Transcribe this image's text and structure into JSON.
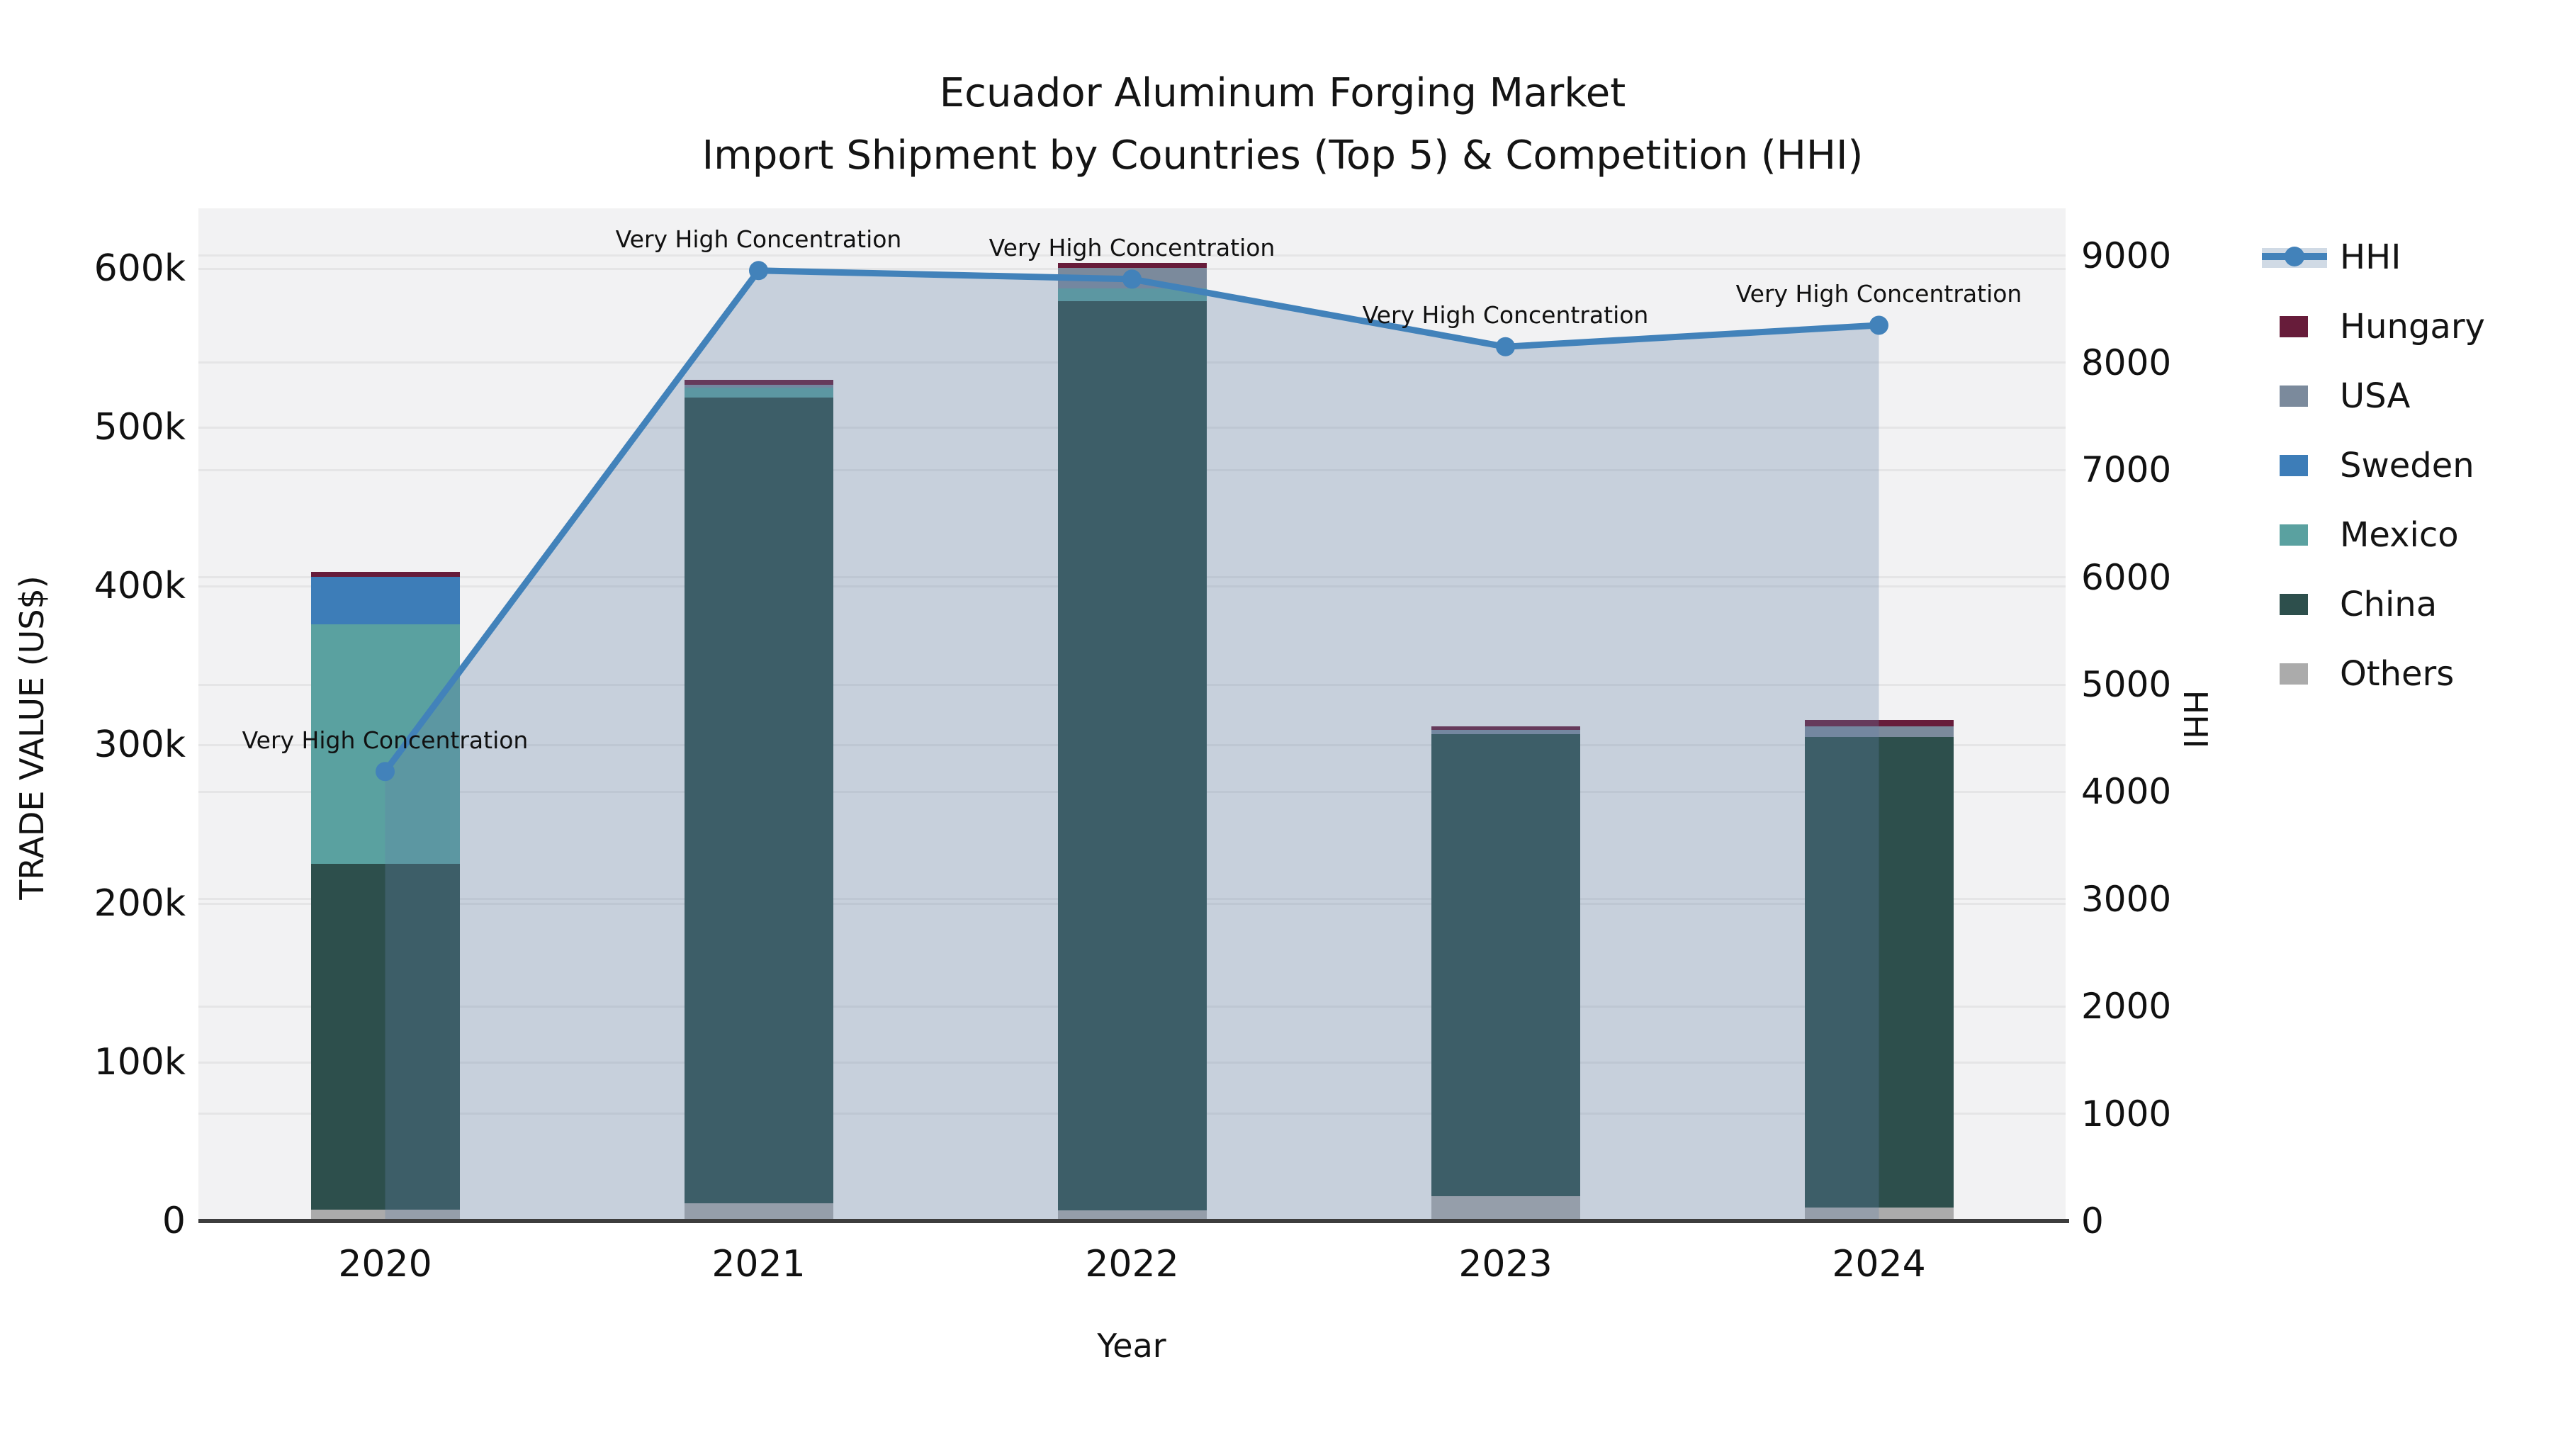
{
  "title": {
    "line1": "Ecuador Aluminum Forging Market",
    "line2": "Import Shipment by Countries (Top 5) & Competition (HHI)"
  },
  "axes": {
    "x": {
      "title": "Year",
      "ticks": [
        "2020",
        "2021",
        "2022",
        "2023",
        "2024"
      ]
    },
    "y_left": {
      "title": "TRADE VALUE (US$)",
      "ticks": [
        "0",
        "100k",
        "200k",
        "300k",
        "400k",
        "500k",
        "600k"
      ],
      "tick_step": 100000,
      "range": [
        0,
        638000
      ]
    },
    "y_right": {
      "title": "HHI",
      "ticks": [
        "0",
        "1000",
        "2000",
        "3000",
        "4000",
        "5000",
        "6000",
        "7000",
        "8000",
        "9000"
      ],
      "tick_step": 1000,
      "range": [
        0,
        9440
      ]
    }
  },
  "legend": {
    "items": [
      {
        "label": "HHI",
        "type": "line",
        "color": "#4282ba",
        "fill": "#d0dae5"
      },
      {
        "label": "Hungary",
        "type": "bar",
        "color": "#671c3a"
      },
      {
        "label": "USA",
        "type": "bar",
        "color": "#7b8a9c"
      },
      {
        "label": "Sweden",
        "type": "bar",
        "color": "#3d7db8"
      },
      {
        "label": "Mexico",
        "type": "bar",
        "color": "#5aa1a0"
      },
      {
        "label": "China",
        "type": "bar",
        "color": "#2d4f4c"
      },
      {
        "label": "Others",
        "type": "bar",
        "color": "#ababab"
      }
    ]
  },
  "chart_data": {
    "type": "bar",
    "subtype": "stacked-bars-with-line",
    "title": "Ecuador Aluminum Forging Market Import Shipment by Countries (Top 5) & Competition (HHI)",
    "xlabel": "Year",
    "ylabel_left": "TRADE VALUE (US$)",
    "ylabel_right": "HHI",
    "categories": [
      "2020",
      "2021",
      "2022",
      "2023",
      "2024"
    ],
    "series": [
      {
        "name": "Others",
        "axis": "left",
        "color": "#ababab",
        "values": [
          7000,
          11000,
          6500,
          15500,
          8500
        ]
      },
      {
        "name": "China",
        "axis": "left",
        "color": "#2d4f4c",
        "values": [
          218000,
          508000,
          573000,
          291000,
          296500
        ]
      },
      {
        "name": "Mexico",
        "axis": "left",
        "color": "#5aa1a0",
        "values": [
          151000,
          6000,
          8000,
          0,
          0
        ]
      },
      {
        "name": "Sweden",
        "axis": "left",
        "color": "#3d7db8",
        "values": [
          30000,
          0,
          0,
          0,
          0
        ]
      },
      {
        "name": "USA",
        "axis": "left",
        "color": "#7b8a9c",
        "values": [
          0,
          2000,
          13000,
          3000,
          6500
        ]
      },
      {
        "name": "Hungary",
        "axis": "left",
        "color": "#671c3a",
        "values": [
          3000,
          3000,
          3000,
          2000,
          4000
        ]
      }
    ],
    "bar_totals": [
      409000,
      530000,
      603500,
      311500,
      315500
    ],
    "line_series": {
      "name": "HHI",
      "axis": "right",
      "color": "#4282ba",
      "fill_color_rgba": "rgba(100,130,170,0.30)",
      "values": [
        4190,
        8860,
        8780,
        8150,
        8350
      ]
    },
    "annotations": [
      {
        "x": "2020",
        "text": "Very High Concentration"
      },
      {
        "x": "2021",
        "text": "Very High Concentration"
      },
      {
        "x": "2022",
        "text": "Very High Concentration"
      },
      {
        "x": "2023",
        "text": "Very High Concentration"
      },
      {
        "x": "2024",
        "text": "Very High Concentration"
      }
    ],
    "layout_hints": {
      "legend_position": "right",
      "grid": true,
      "plot_background": "#f2f2f3",
      "left_axis_range": [
        0,
        638000
      ],
      "right_axis_range": [
        0,
        9440
      ]
    }
  }
}
